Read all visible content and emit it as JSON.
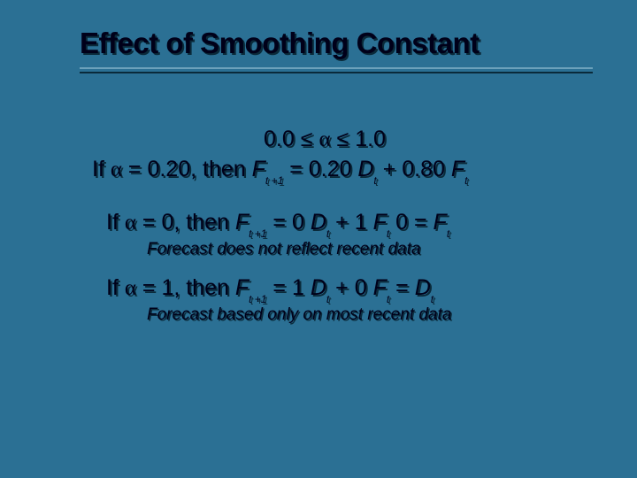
{
  "slide": {
    "background_color": "#2b7094",
    "text_color": "#000019",
    "shadow_color": "#0a2a3a",
    "title": "Effect of Smoothing Constant",
    "title_fontsize": 33,
    "body_fontsize": 25,
    "note_fontsize": 19,
    "range": {
      "low": "0.0",
      "alpha": "α",
      "le": "≤",
      "high": "1.0"
    },
    "case1": {
      "prefix": "If ",
      "alpha": "α",
      "eq": " = 0.20, then ",
      "F": "F",
      "sub1": "t +1",
      "mid": " = 0.20 ",
      "D": "D",
      "subD": "t",
      "plus": " + 0.80 ",
      "F2": "F",
      "subF": "t"
    },
    "case2": {
      "prefix": "If ",
      "alpha": "α",
      "eq": " = 0, then ",
      "F": "F",
      "sub1": "t +1",
      "mid": " = 0 ",
      "D": "D",
      "subD": "t",
      "plus": " + 1 ",
      "F2": "F",
      "subF": "t",
      "zero": " 0 = ",
      "F3": "F",
      "subF3": "t",
      "note": "Forecast does not reflect recent data"
    },
    "case3": {
      "prefix": "If ",
      "alpha": "α",
      "eq": " = 1, then ",
      "F": "F",
      "sub1": "t +1",
      "mid": " = 1 ",
      "D": "D",
      "subD": "t",
      "plus": " + 0 ",
      "F2": "F",
      "subF": "t",
      "eq2": " = ",
      "D2": "D",
      "subD2": "t",
      "note": "Forecast based only on most recent data"
    }
  }
}
